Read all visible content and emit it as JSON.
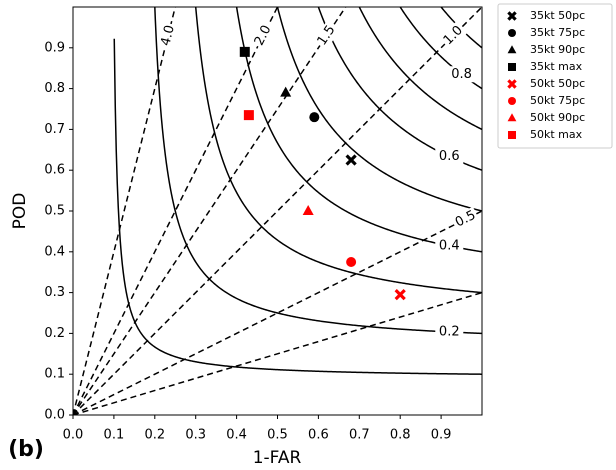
{
  "chart_data": {
    "type": "performance",
    "panel_label": "(b)",
    "x_label": "1-FAR",
    "y_label": "POD",
    "xlim": [
      0,
      1
    ],
    "ylim": [
      0,
      1
    ],
    "xticks": [
      {
        "value": 0,
        "label": "0.0"
      },
      0.1,
      0.2,
      0.3,
      0.4,
      0.5,
      0.6,
      0.7,
      0.8,
      0.9
    ],
    "yticks": [
      {
        "value": 0,
        "label": "0.0"
      },
      0.1,
      0.2,
      0.3,
      0.4,
      0.5,
      0.6,
      0.7,
      0.8,
      0.9
    ],
    "csi_levels": [
      0.1,
      {
        "value": 0.2,
        "label": "0.2"
      },
      0.3,
      {
        "value": 0.4,
        "label": "0.4"
      },
      0.5,
      {
        "value": 0.6,
        "label": "0.6"
      },
      0.7,
      {
        "value": 0.8,
        "label": "0.8"
      },
      0.9
    ],
    "bias_levels": [
      {
        "value": 4,
        "label": "4.0"
      },
      {
        "value": 2,
        "label": "2.0"
      },
      {
        "value": 1.5,
        "label": "1.5"
      },
      {
        "value": 1,
        "label": "1.0"
      },
      {
        "value": 0.5,
        "label": "0.5"
      },
      0.3
    ],
    "series": [
      {
        "name": "35kt 50pc",
        "color": "#000000",
        "marker": "x",
        "x": [
          0.68
        ],
        "values": [
          0.625
        ]
      },
      {
        "name": "35kt 75pc",
        "color": "#000000",
        "marker": "circle",
        "x": [
          0.59
        ],
        "values": [
          0.73
        ]
      },
      {
        "name": "35kt 90pc",
        "color": "#000000",
        "marker": "triangle",
        "x": [
          0.52
        ],
        "values": [
          0.79
        ]
      },
      {
        "name": "35kt max",
        "color": "#000000",
        "marker": "square",
        "x": [
          0.42
        ],
        "values": [
          0.89
        ]
      },
      {
        "name": "50kt 50pc",
        "color": "#ff0000",
        "marker": "x",
        "x": [
          0.8
        ],
        "values": [
          0.295
        ]
      },
      {
        "name": "50kt 75pc",
        "color": "#ff0000",
        "marker": "circle",
        "x": [
          0.68
        ],
        "values": [
          0.375
        ]
      },
      {
        "name": "50kt 90pc",
        "color": "#ff0000",
        "marker": "triangle",
        "x": [
          0.575
        ],
        "values": [
          0.5
        ]
      },
      {
        "name": "50kt max",
        "color": "#ff0000",
        "marker": "square",
        "x": [
          0.43
        ],
        "values": [
          0.735
        ]
      }
    ]
  }
}
